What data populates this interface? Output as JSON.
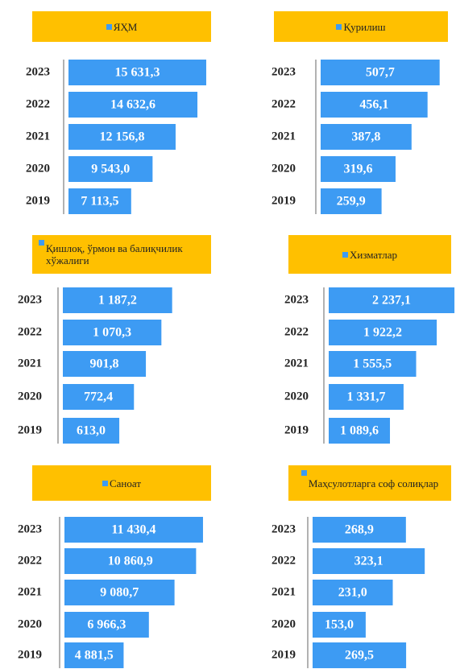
{
  "chart_data": [
    {
      "type": "bar",
      "categories": [
        "2023",
        "2022",
        "2021",
        "2020",
        "2019"
      ],
      "series": [
        {
          "name": "ЯҲМ",
          "color": "#3d9bf3",
          "values": [
            15631.3,
            14632.6,
            12156.8,
            9543.0,
            7113.5
          ],
          "value_labels": [
            "15 631,3",
            "14 632,6",
            "12 156,8",
            "9 543,0",
            "7 113,5"
          ]
        }
      ],
      "xlim": [
        0,
        16000
      ],
      "legend": "top"
    },
    {
      "type": "bar",
      "categories": [
        "2023",
        "2022",
        "2021",
        "2020",
        "2019"
      ],
      "series": [
        {
          "name": "Қурилиш",
          "color": "#3d9bf3",
          "values": [
            507.7,
            456.1,
            387.8,
            319.6,
            259.9
          ],
          "value_labels": [
            "507,7",
            "456,1",
            "387,8",
            "319,6",
            "259,9"
          ]
        }
      ],
      "xlim": [
        0,
        550
      ],
      "legend": "top"
    },
    {
      "type": "bar",
      "categories": [
        "2023",
        "2022",
        "2021",
        "2020",
        "2019"
      ],
      "series": [
        {
          "name": "Қишлоқ, ўрмон ва балиқчилик хўжалиги",
          "color": "#3d9bf3",
          "values": [
            1187.2,
            1070.3,
            901.8,
            772.4,
            613.0
          ],
          "value_labels": [
            "1 187,2",
            "1 070,3",
            "901,8",
            "772,4",
            "613,0"
          ]
        }
      ],
      "xlim": [
        0,
        1400
      ],
      "legend": "top"
    },
    {
      "type": "bar",
      "categories": [
        "2023",
        "2022",
        "2021",
        "2020",
        "2019"
      ],
      "series": [
        {
          "name": "Хизматлар",
          "color": "#3d9bf3",
          "values": [
            2237.1,
            1922.2,
            1555.5,
            1331.7,
            1089.6
          ],
          "value_labels": [
            "2 237,1",
            "1 922,2",
            "1 555,5",
            "1 331,7",
            "1 089,6"
          ]
        }
      ],
      "xlim": [
        0,
        2150
      ],
      "legend": "top"
    },
    {
      "type": "bar",
      "categories": [
        "2023",
        "2022",
        "2021",
        "2020",
        "2019"
      ],
      "series": [
        {
          "name": "Саноат",
          "color": "#3d9bf3",
          "values": [
            11430.4,
            10860.9,
            9080.7,
            6966.3,
            4881.5
          ],
          "value_labels": [
            "11 430,4",
            "10 860,9",
            "9 080,7",
            "6 966,3",
            "4 881,5"
          ]
        }
      ],
      "xlim": [
        0,
        11300
      ],
      "legend": "top"
    },
    {
      "type": "bar",
      "categories": [
        "2023",
        "2022",
        "2021",
        "2020",
        "2019"
      ],
      "series": [
        {
          "name": "Маҳсулотларга соф солиқлар",
          "color": "#3d9bf3",
          "values": [
            268.9,
            323.1,
            231.0,
            153.0,
            269.5
          ],
          "value_labels": [
            "268,9",
            "323,1",
            "231,0",
            "153,0",
            "269,5"
          ]
        }
      ],
      "xlim": [
        0,
        325
      ],
      "legend": "top"
    }
  ]
}
